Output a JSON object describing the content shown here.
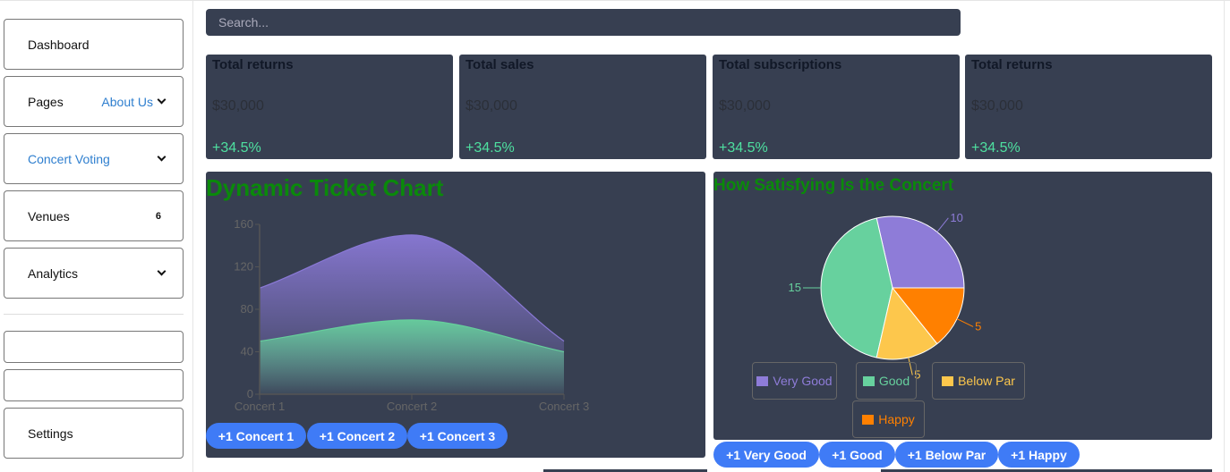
{
  "sidebar": {
    "items": [
      {
        "label": "Dashboard"
      },
      {
        "label": "Pages",
        "value": "About Us"
      },
      {
        "label": "Concert Voting"
      },
      {
        "label": "Venues",
        "badge": "6"
      },
      {
        "label": "Analytics"
      },
      {
        "label": ""
      },
      {
        "label": ""
      },
      {
        "label": "Settings"
      }
    ]
  },
  "search": {
    "placeholder": "Search..."
  },
  "cards": [
    {
      "title": "Total returns",
      "value": "$30,000",
      "change": "+34.5%"
    },
    {
      "title": "Total sales",
      "value": "$30,000",
      "change": "+34.5%"
    },
    {
      "title": "Total subscriptions",
      "value": "$30,000",
      "change": "+34.5%"
    },
    {
      "title": "Total returns",
      "value": "$30,000",
      "change": "+34.5%"
    }
  ],
  "area_panel": {
    "title": "Dynamic Ticket Chart",
    "buttons": [
      "+1 Concert 1",
      "+1 Concert 2",
      "+1 Concert 3"
    ]
  },
  "pie_panel": {
    "title": "How Satisfying Is the Concert",
    "buttons": [
      "+1 Very Good",
      "+1 Good",
      "+1 Below Par",
      "+1 Happy"
    ]
  },
  "chart_data": [
    {
      "type": "area",
      "categories": [
        "Concert 1",
        "Concert 2",
        "Concert 3"
      ],
      "series": [
        {
          "values": [
            100,
            150,
            50
          ],
          "color": "#8a79d6"
        },
        {
          "values": [
            50,
            70,
            40
          ],
          "color": "#66cf9c"
        }
      ],
      "ylim": [
        0,
        160
      ],
      "yticks": [
        0,
        40,
        80,
        120,
        160
      ],
      "grid": false
    },
    {
      "type": "pie",
      "categories": [
        "Very Good",
        "Good",
        "Below Par",
        "Happy"
      ],
      "values": [
        10,
        15,
        5,
        5
      ],
      "colors": [
        "#8e7cd8",
        "#67d19e",
        "#fdc74c",
        "#ff8000"
      ],
      "legend": "bottom"
    }
  ]
}
